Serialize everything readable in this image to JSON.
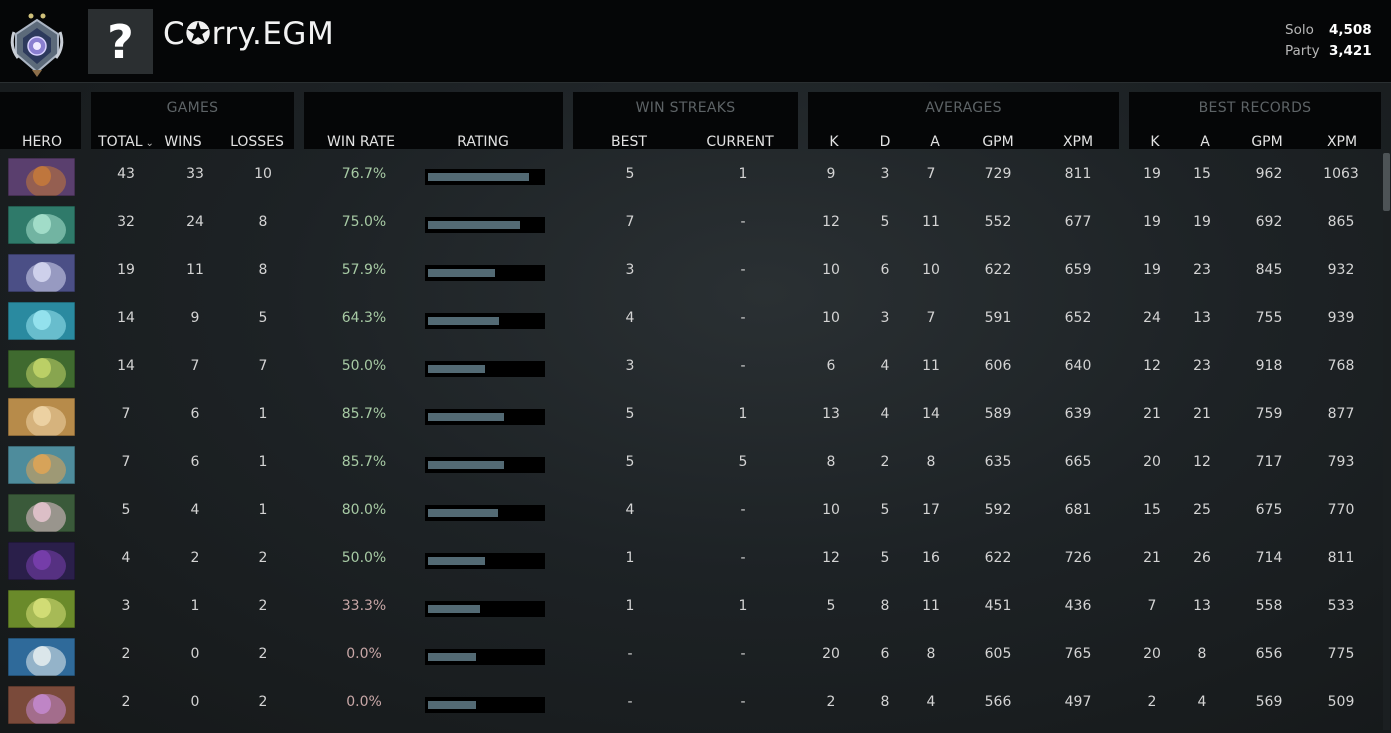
{
  "player": {
    "name": "C✪rry.EGM",
    "avatar_glyph": "?"
  },
  "mmr": {
    "solo_label": "Solo",
    "solo_value": "4,508",
    "party_label": "Party",
    "party_value": "3,421"
  },
  "groups": {
    "games": "GAMES",
    "win_streaks": "WIN STREAKS",
    "averages": "AVERAGES",
    "best_records": "BEST RECORDS"
  },
  "columns": {
    "hero": "HERO",
    "total": "TOTAL",
    "sort_glyph": "⌄",
    "wins": "WINS",
    "losses": "LOSSES",
    "win_rate": "WIN RATE",
    "rating": "RATING",
    "best": "BEST",
    "current": "CURRENT",
    "avg_k": "K",
    "avg_d": "D",
    "avg_a": "A",
    "avg_gpm": "GPM",
    "avg_xpm": "XPM",
    "best_k": "K",
    "best_a": "A",
    "best_gpm": "GPM",
    "best_xpm": "XPM"
  },
  "rows": [
    {
      "hero_icon": "anti-mage-icon",
      "total": "43",
      "wins": "33",
      "losses": "10",
      "win_rate": "76.7%",
      "rating": 0.89,
      "streak_best": "5",
      "streak_current": "1",
      "avg_k": "9",
      "avg_d": "3",
      "avg_a": "7",
      "avg_gpm": "729",
      "avg_xpm": "811",
      "best_k": "19",
      "best_a": "15",
      "best_gpm": "962",
      "best_xpm": "1063"
    },
    {
      "hero_icon": "naga-siren-icon",
      "total": "32",
      "wins": "24",
      "losses": "8",
      "win_rate": "75.0%",
      "rating": 0.81,
      "streak_best": "7",
      "streak_current": "-",
      "avg_k": "12",
      "avg_d": "5",
      "avg_a": "11",
      "avg_gpm": "552",
      "avg_xpm": "677",
      "best_k": "19",
      "best_a": "19",
      "best_gpm": "692",
      "best_xpm": "865"
    },
    {
      "hero_icon": "luna-icon",
      "total": "19",
      "wins": "11",
      "losses": "8",
      "win_rate": "57.9%",
      "rating": 0.59,
      "streak_best": "3",
      "streak_current": "-",
      "avg_k": "10",
      "avg_d": "6",
      "avg_a": "10",
      "avg_gpm": "622",
      "avg_xpm": "659",
      "best_k": "19",
      "best_a": "23",
      "best_gpm": "845",
      "best_xpm": "932"
    },
    {
      "hero_icon": "morphling-icon",
      "total": "14",
      "wins": "9",
      "losses": "5",
      "win_rate": "64.3%",
      "rating": 0.62,
      "streak_best": "4",
      "streak_current": "-",
      "avg_k": "10",
      "avg_d": "3",
      "avg_a": "7",
      "avg_gpm": "591",
      "avg_xpm": "652",
      "best_k": "24",
      "best_a": "13",
      "best_gpm": "755",
      "best_xpm": "939"
    },
    {
      "hero_icon": "gyrocopter-icon",
      "total": "14",
      "wins": "7",
      "losses": "7",
      "win_rate": "50.0%",
      "rating": 0.5,
      "streak_best": "3",
      "streak_current": "-",
      "avg_k": "6",
      "avg_d": "4",
      "avg_a": "11",
      "avg_gpm": "606",
      "avg_xpm": "640",
      "best_k": "12",
      "best_a": "23",
      "best_gpm": "918",
      "best_xpm": "768"
    },
    {
      "hero_icon": "lone-druid-icon",
      "total": "7",
      "wins": "6",
      "losses": "1",
      "win_rate": "85.7%",
      "rating": 0.67,
      "streak_best": "5",
      "streak_current": "1",
      "avg_k": "13",
      "avg_d": "4",
      "avg_a": "14",
      "avg_gpm": "589",
      "avg_xpm": "639",
      "best_k": "21",
      "best_a": "21",
      "best_gpm": "759",
      "best_xpm": "877"
    },
    {
      "hero_icon": "troll-warlord-icon",
      "total": "7",
      "wins": "6",
      "losses": "1",
      "win_rate": "85.7%",
      "rating": 0.67,
      "streak_best": "5",
      "streak_current": "5",
      "avg_k": "8",
      "avg_d": "2",
      "avg_a": "8",
      "avg_gpm": "635",
      "avg_xpm": "665",
      "best_k": "20",
      "best_a": "12",
      "best_gpm": "717",
      "best_xpm": "793"
    },
    {
      "hero_icon": "sniper-icon",
      "total": "5",
      "wins": "4",
      "losses": "1",
      "win_rate": "80.0%",
      "rating": 0.61,
      "streak_best": "4",
      "streak_current": "-",
      "avg_k": "10",
      "avg_d": "5",
      "avg_a": "17",
      "avg_gpm": "592",
      "avg_xpm": "681",
      "best_k": "15",
      "best_a": "25",
      "best_gpm": "675",
      "best_xpm": "770"
    },
    {
      "hero_icon": "faceless-void-icon",
      "total": "4",
      "wins": "2",
      "losses": "2",
      "win_rate": "50.0%",
      "rating": 0.5,
      "streak_best": "1",
      "streak_current": "-",
      "avg_k": "12",
      "avg_d": "5",
      "avg_a": "16",
      "avg_gpm": "622",
      "avg_xpm": "726",
      "best_k": "21",
      "best_a": "26",
      "best_gpm": "714",
      "best_xpm": "811"
    },
    {
      "hero_icon": "venomancer-icon",
      "total": "3",
      "wins": "1",
      "losses": "2",
      "win_rate": "33.3%",
      "rating": 0.46,
      "streak_best": "1",
      "streak_current": "1",
      "avg_k": "5",
      "avg_d": "8",
      "avg_a": "11",
      "avg_gpm": "451",
      "avg_xpm": "436",
      "best_k": "7",
      "best_a": "13",
      "best_gpm": "558",
      "best_xpm": "533"
    },
    {
      "hero_icon": "tusk-icon",
      "total": "2",
      "wins": "0",
      "losses": "2",
      "win_rate": "0.0%",
      "rating": 0.42,
      "streak_best": "-",
      "streak_current": "-",
      "avg_k": "20",
      "avg_d": "6",
      "avg_a": "8",
      "avg_gpm": "605",
      "avg_xpm": "765",
      "best_k": "20",
      "best_a": "8",
      "best_gpm": "656",
      "best_xpm": "775"
    },
    {
      "hero_icon": "alchemist-icon",
      "total": "2",
      "wins": "0",
      "losses": "2",
      "win_rate": "0.0%",
      "rating": 0.42,
      "streak_best": "-",
      "streak_current": "-",
      "avg_k": "2",
      "avg_d": "8",
      "avg_a": "4",
      "avg_gpm": "566",
      "avg_xpm": "497",
      "best_k": "2",
      "best_a": "4",
      "best_gpm": "569",
      "best_xpm": "509"
    }
  ]
}
